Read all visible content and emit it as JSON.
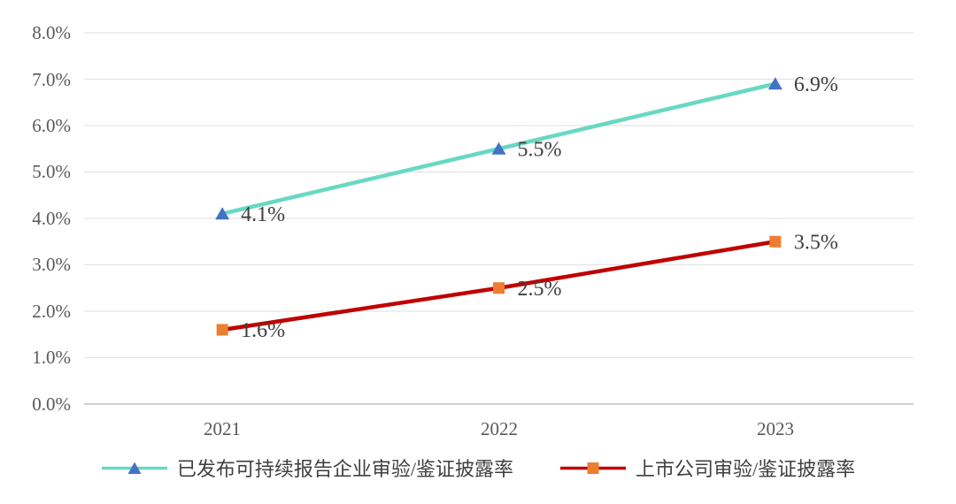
{
  "chart_data": {
    "type": "line",
    "categories": [
      "2021",
      "2022",
      "2023"
    ],
    "series": [
      {
        "name": "已发布可持续报告企业审验/鉴证披露率",
        "values": [
          4.1,
          5.5,
          6.9
        ],
        "data_labels": [
          "4.1%",
          "5.5%",
          "6.9%"
        ],
        "line_color": "#68D8C3",
        "marker": "triangle",
        "marker_color": "#4472C4"
      },
      {
        "name": "上市公司审验/鉴证披露率",
        "values": [
          1.6,
          2.5,
          3.5
        ],
        "data_labels": [
          "1.6%",
          "2.5%",
          "3.5%"
        ],
        "line_color": "#C00000",
        "marker": "square",
        "marker_color": "#ED7D31"
      }
    ],
    "title": "",
    "xlabel": "",
    "ylabel": "",
    "ylim": [
      0,
      8
    ],
    "ytick_step": 1,
    "ytick_labels": [
      "0.0%",
      "1.0%",
      "2.0%",
      "3.0%",
      "4.0%",
      "5.0%",
      "6.0%",
      "7.0%",
      "8.0%"
    ],
    "grid": true,
    "legend_position": "bottom",
    "colors": {
      "gridline": "#E3E3E3",
      "axis_line": "#BFBFBF",
      "tick_label": "#595959",
      "data_label": "#3F3F3F",
      "background": "#FFFFFF"
    }
  }
}
